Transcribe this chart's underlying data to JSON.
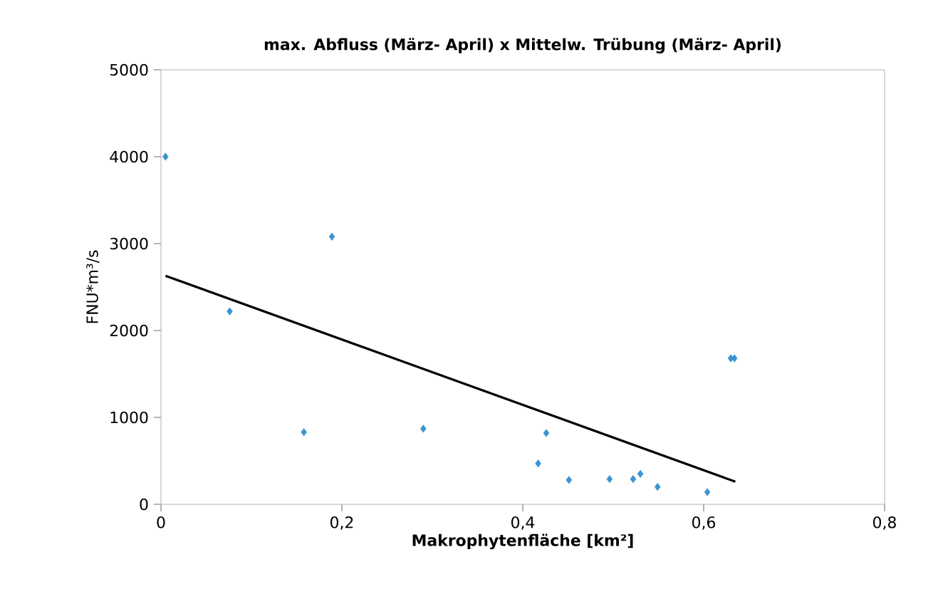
{
  "chart_data": {
    "type": "scatter",
    "title": "max. Abfluss (März- April) x Mittelw. Trübung (März- April)",
    "xlabel": "Makrophytenfläche [km²]",
    "ylabel": "FNU*m³/s",
    "xlim": [
      0,
      0.8
    ],
    "xticks": [
      0,
      {
        "value": 0.2,
        "label": "0,2"
      },
      {
        "value": 0.4,
        "label": "0,4"
      },
      {
        "value": 0.6,
        "label": "0,6"
      },
      {
        "value": 0.8,
        "label": "0,8"
      }
    ],
    "ylim": [
      0,
      5000
    ],
    "yticks": [
      0,
      1000,
      2000,
      3000,
      4000,
      5000
    ],
    "series": [
      {
        "color": "#3c94d0",
        "marker": "diamond",
        "x": [
          0.005,
          0.076,
          0.158,
          0.189,
          0.29,
          0.417,
          0.426,
          0.451,
          0.496,
          0.522,
          0.53,
          0.549,
          0.604,
          0.63,
          0.634
        ],
        "values": [
          4000,
          2220,
          830,
          3080,
          870,
          470,
          820,
          280,
          290,
          290,
          350,
          200,
          140,
          1680,
          1680
        ]
      },
      {
        "type": "line",
        "color": "#000000",
        "line_style": "solid",
        "x": [
          0.005,
          0.635
        ],
        "values": [
          2630,
          260
        ]
      }
    ]
  }
}
